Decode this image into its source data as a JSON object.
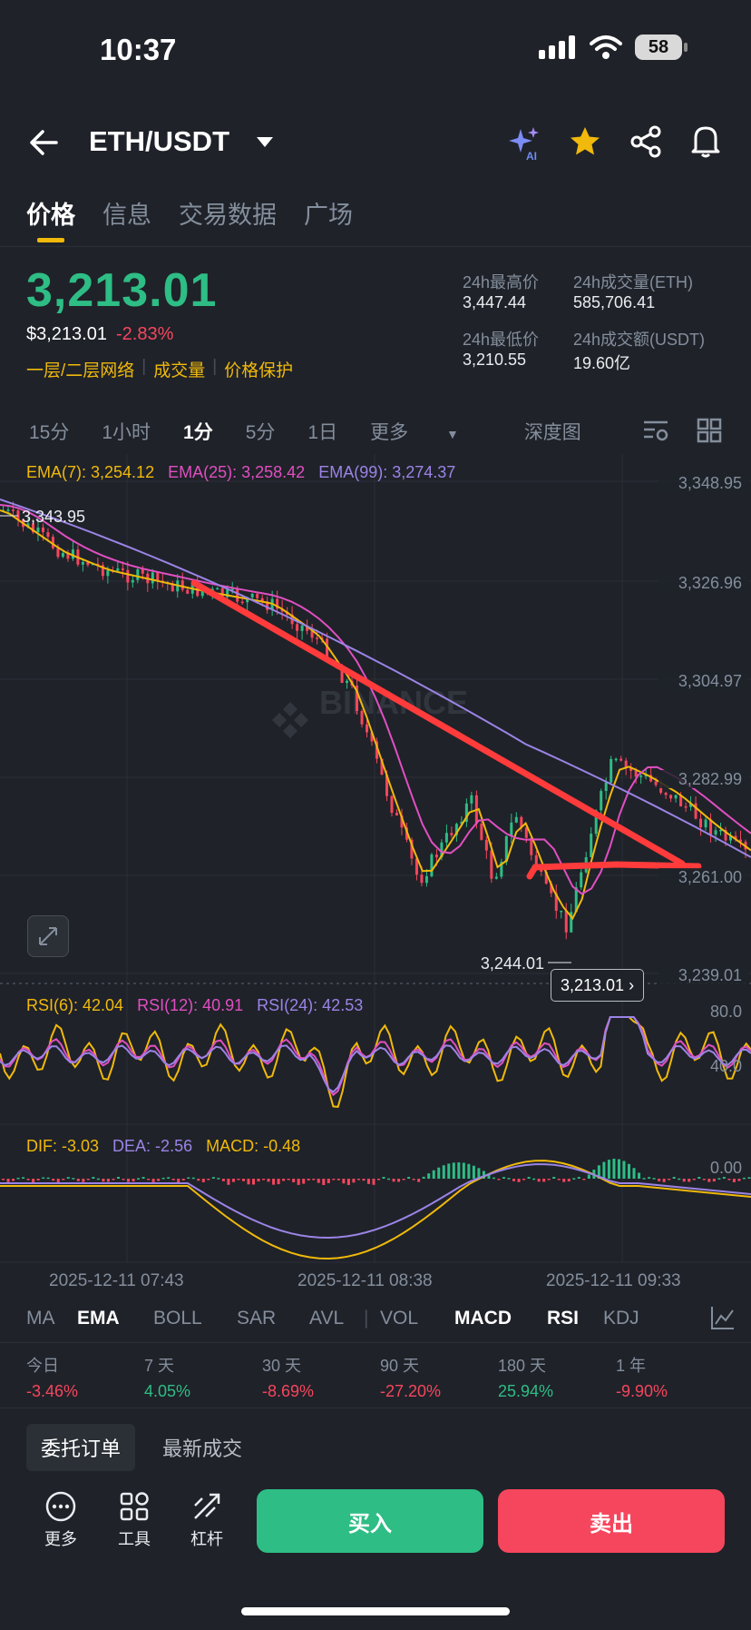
{
  "status": {
    "time": "10:37",
    "battery": "58"
  },
  "header": {
    "pair": "ETH/USDT"
  },
  "tabs": [
    "价格",
    "信息",
    "交易数据",
    "广场"
  ],
  "ticker": {
    "price": "3,213.01",
    "usd_price": "$3,213.01",
    "change": "-2.83%",
    "links": [
      "一层/二层网络",
      "成交量",
      "价格保护"
    ],
    "stats": [
      {
        "label": "24h最高价",
        "value": "3,447.44"
      },
      {
        "label": "24h成交量(ETH)",
        "value": "585,706.41"
      },
      {
        "label": "24h最低价",
        "value": "3,210.55"
      },
      {
        "label": "24h成交额(USDT)",
        "value": "19.60亿"
      }
    ]
  },
  "intervals": [
    "15分",
    "1小时",
    "1分",
    "5分",
    "1日",
    "更多",
    "深度图"
  ],
  "active_interval": "1分",
  "indicators": {
    "ema7": "EMA(7): 3,254.12",
    "ema25": "EMA(25): 3,258.42",
    "ema99": "EMA(99): 3,274.37",
    "rsi6": "RSI(6): 42.04",
    "rsi12": "RSI(12): 40.91",
    "rsi24": "RSI(24): 42.53",
    "dif": "DIF: -3.03",
    "dea": "DEA: -2.56",
    "macd": "MACD: -0.48"
  },
  "chart_data": {
    "type": "candlestick",
    "y_ticks": [
      "3,348.95",
      "3,326.96",
      "3,304.97",
      "3,282.99",
      "3,261.00",
      "3,239.01"
    ],
    "x_ticks": [
      "2025-12-11 07:43",
      "2025-12-11 08:38",
      "2025-12-11 09:33"
    ],
    "high_marker": "3,343.95",
    "low_marker": "3,244.01",
    "current_price_tag": "3,213.01",
    "rsi_ticks": [
      "80.0",
      "40.0"
    ],
    "macd_ticks": [
      "0.00"
    ],
    "watermark": "BINANCE",
    "colors": {
      "up": "#2ebd85",
      "down": "#f6465d",
      "ema7": "#f0b90b",
      "ema25": "#e04fc1",
      "ema99": "#9b84e6",
      "trendline": "#ff3b3b"
    }
  },
  "indicator_tabs": [
    "MA",
    "EMA",
    "BOLL",
    "SAR",
    "AVL",
    "VOL",
    "MACD",
    "RSI",
    "KDJ"
  ],
  "performance": [
    {
      "label": "今日",
      "value": "-3.46%",
      "dir": "down"
    },
    {
      "label": "7 天",
      "value": "4.05%",
      "dir": "up"
    },
    {
      "label": "30 天",
      "value": "-8.69%",
      "dir": "down"
    },
    {
      "label": "90 天",
      "value": "-27.20%",
      "dir": "down"
    },
    {
      "label": "180 天",
      "value": "25.94%",
      "dir": "up"
    },
    {
      "label": "1 年",
      "value": "-9.90%",
      "dir": "down"
    }
  ],
  "order_tabs": [
    "委托订单",
    "最新成交"
  ],
  "bottom": {
    "more": "更多",
    "tools": "工具",
    "leverage": "杠杆",
    "buy": "买入",
    "sell": "卖出"
  }
}
